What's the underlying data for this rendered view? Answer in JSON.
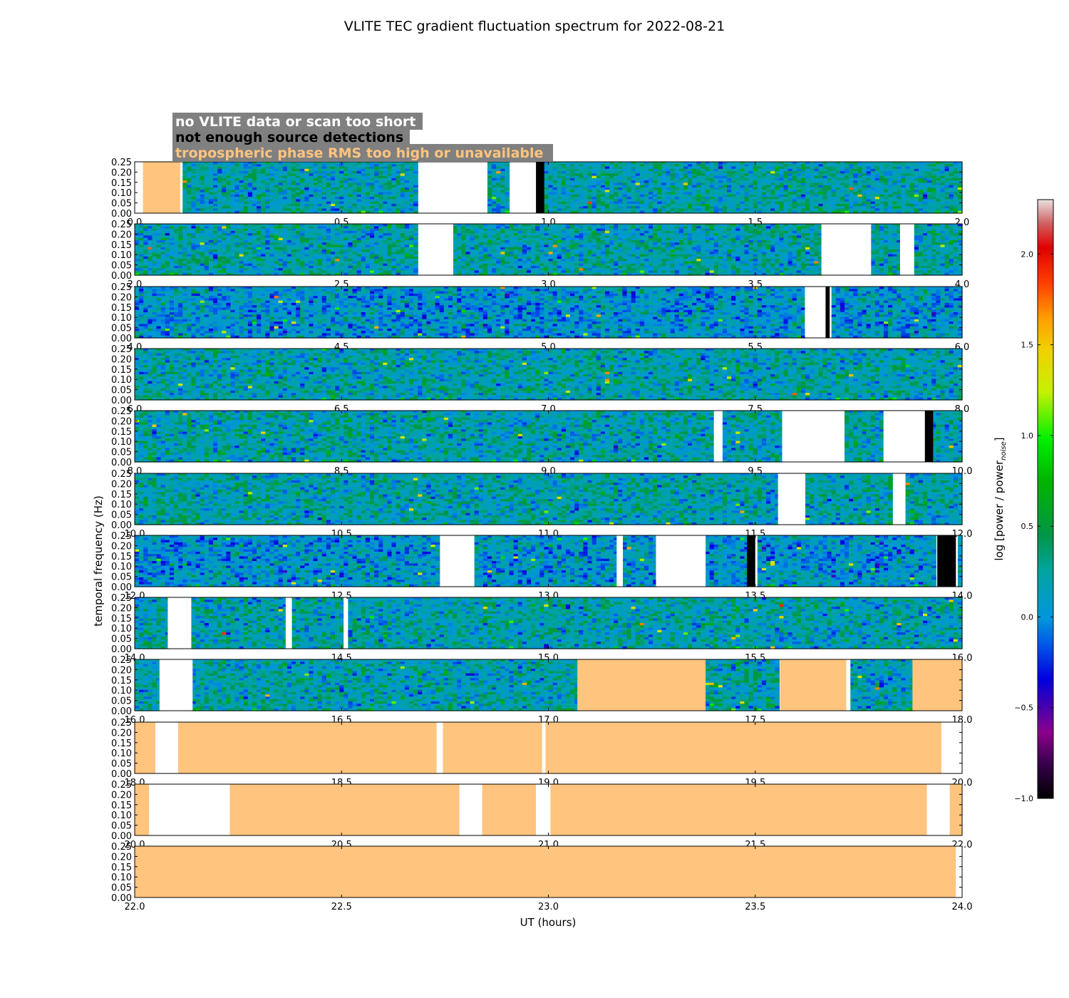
{
  "chart_data": {
    "type": "heatmap",
    "title": "VLITE TEC gradient fluctuation spectrum for 2022-08-21",
    "xlabel": "UT (hours)",
    "ylabel": "temporal frequency (Hz)",
    "colorbar_label_main": "log [power / power",
    "colorbar_label_sub": "noise",
    "colorbar_label_end": "]",
    "colorbar_range": [
      -1.0,
      2.3
    ],
    "colorbar_ticks": [
      "−1.0",
      "−0.5",
      "0.0",
      "0.5",
      "1.0",
      "1.5",
      "2.0"
    ],
    "colorbar_tick_values": [
      -1.0,
      -0.5,
      0.0,
      0.5,
      1.0,
      1.5,
      2.0
    ],
    "y_ticks": [
      "0.00",
      "0.05",
      "0.10",
      "0.15",
      "0.20",
      "0.25"
    ],
    "y_tick_values": [
      0.0,
      0.05,
      0.1,
      0.15,
      0.2,
      0.25
    ],
    "ylim": [
      0,
      0.25
    ],
    "legend": [
      {
        "label": "no VLITE data or scan too short",
        "color": "#ffffff"
      },
      {
        "label": "not enough source detections",
        "color": "#000000"
      },
      {
        "label": "tropospheric phase RMS too high or unavailable",
        "color": "#ffc47e"
      }
    ],
    "mask_colors": {
      "white": "#ffffff",
      "black": "#000000",
      "orange": "#ffc47e"
    },
    "panels": [
      {
        "xlim": [
          0,
          2
        ],
        "x_ticks": [
          "0.0",
          "0.5",
          "1.0",
          "1.5",
          "2.0"
        ],
        "masks": [
          [
            "white",
            0,
            0.02
          ],
          [
            "orange",
            0.02,
            0.11
          ],
          [
            "white",
            0.69,
            0.85
          ],
          [
            "white",
            0.91,
            0.97
          ],
          [
            "black",
            0.97,
            0.99
          ]
        ]
      },
      {
        "xlim": [
          2,
          4
        ],
        "x_ticks": [
          "2.0",
          "2.5",
          "3.0",
          "3.5",
          "4.0"
        ],
        "masks": [
          [
            "white",
            2.69,
            2.77
          ],
          [
            "white",
            3.66,
            3.78
          ],
          [
            "white",
            3.85,
            3.88
          ]
        ]
      },
      {
        "xlim": [
          4,
          6
        ],
        "x_ticks": [
          "4.0",
          "4.5",
          "5.0",
          "5.5",
          "6.0"
        ],
        "masks": [
          [
            "white",
            5.62,
            5.67
          ],
          [
            "black",
            5.67,
            5.68
          ]
        ]
      },
      {
        "xlim": [
          6,
          8
        ],
        "x_ticks": [
          "6.0",
          "6.5",
          "7.0",
          "7.5",
          "8.0"
        ],
        "masks": []
      },
      {
        "xlim": [
          8,
          10
        ],
        "x_ticks": [
          "8.0",
          "8.5",
          "9.0",
          "9.5",
          "10.0"
        ],
        "masks": [
          [
            "white",
            9.4,
            9.415
          ],
          [
            "white",
            9.565,
            9.715
          ],
          [
            "white",
            9.81,
            9.91
          ],
          [
            "black",
            9.91,
            9.93
          ]
        ]
      },
      {
        "xlim": [
          10,
          12
        ],
        "x_ticks": [
          "10.0",
          "10.5",
          "11.0",
          "11.5",
          "12.0"
        ],
        "masks": [
          [
            "white",
            11.555,
            11.62
          ],
          [
            "white",
            11.835,
            11.86
          ]
        ]
      },
      {
        "xlim": [
          12,
          14
        ],
        "x_ticks": [
          "12.0",
          "12.5",
          "13.0",
          "13.5",
          "14.0"
        ],
        "masks": [
          [
            "white",
            12.74,
            12.82
          ],
          [
            "white",
            13.165,
            13.18
          ],
          [
            "white",
            13.26,
            13.38
          ],
          [
            "black",
            13.48,
            13.5
          ],
          [
            "black",
            13.94,
            13.985
          ]
        ]
      },
      {
        "xlim": [
          14,
          16
        ],
        "x_ticks": [
          "14.0",
          "14.5",
          "15.0",
          "15.5",
          "16.0"
        ],
        "masks": [
          [
            "white",
            14.08,
            14.135
          ],
          [
            "white",
            14.365,
            14.38
          ],
          [
            "white",
            14.505,
            14.51
          ]
        ]
      },
      {
        "xlim": [
          16,
          18
        ],
        "x_ticks": [
          "16.0",
          "16.5",
          "17.0",
          "17.5",
          "18.0"
        ],
        "masks": [
          [
            "white",
            16.06,
            16.14
          ],
          [
            "orange",
            17.07,
            17.38
          ],
          [
            "orange",
            17.56,
            17.72
          ],
          [
            "white",
            17.72,
            17.73
          ],
          [
            "orange",
            17.88,
            18.0
          ]
        ]
      },
      {
        "xlim": [
          18,
          20
        ],
        "x_ticks": [
          "18.0",
          "18.5",
          "19.0",
          "19.5",
          "20.0"
        ],
        "masks": [
          [
            "orange",
            18.0,
            18.05
          ],
          [
            "white",
            18.05,
            18.105
          ],
          [
            "orange",
            18.105,
            18.73
          ],
          [
            "white",
            18.73,
            18.745
          ],
          [
            "orange",
            18.745,
            18.985
          ],
          [
            "white",
            18.985,
            18.993
          ],
          [
            "orange",
            18.993,
            19.95
          ],
          [
            "white",
            19.95,
            20.0
          ]
        ]
      },
      {
        "xlim": [
          20,
          22
        ],
        "x_ticks": [
          "20.0",
          "20.5",
          "21.0",
          "21.5",
          "22.0"
        ],
        "masks": [
          [
            "orange",
            20.0,
            20.035
          ],
          [
            "white",
            20.035,
            20.23
          ],
          [
            "orange",
            20.23,
            20.785
          ],
          [
            "white",
            20.785,
            20.84
          ],
          [
            "orange",
            20.84,
            20.97
          ],
          [
            "white",
            20.97,
            21.005
          ],
          [
            "orange",
            21.005,
            21.915
          ],
          [
            "white",
            21.915,
            21.97
          ],
          [
            "orange",
            21.97,
            22.0
          ]
        ]
      },
      {
        "xlim": [
          22,
          24
        ],
        "x_ticks": [
          "22.0",
          "22.5",
          "23.0",
          "23.5",
          "24.0"
        ],
        "masks": [
          [
            "orange",
            22.0,
            23.985
          ],
          [
            "white",
            23.985,
            24.0
          ]
        ]
      }
    ]
  }
}
